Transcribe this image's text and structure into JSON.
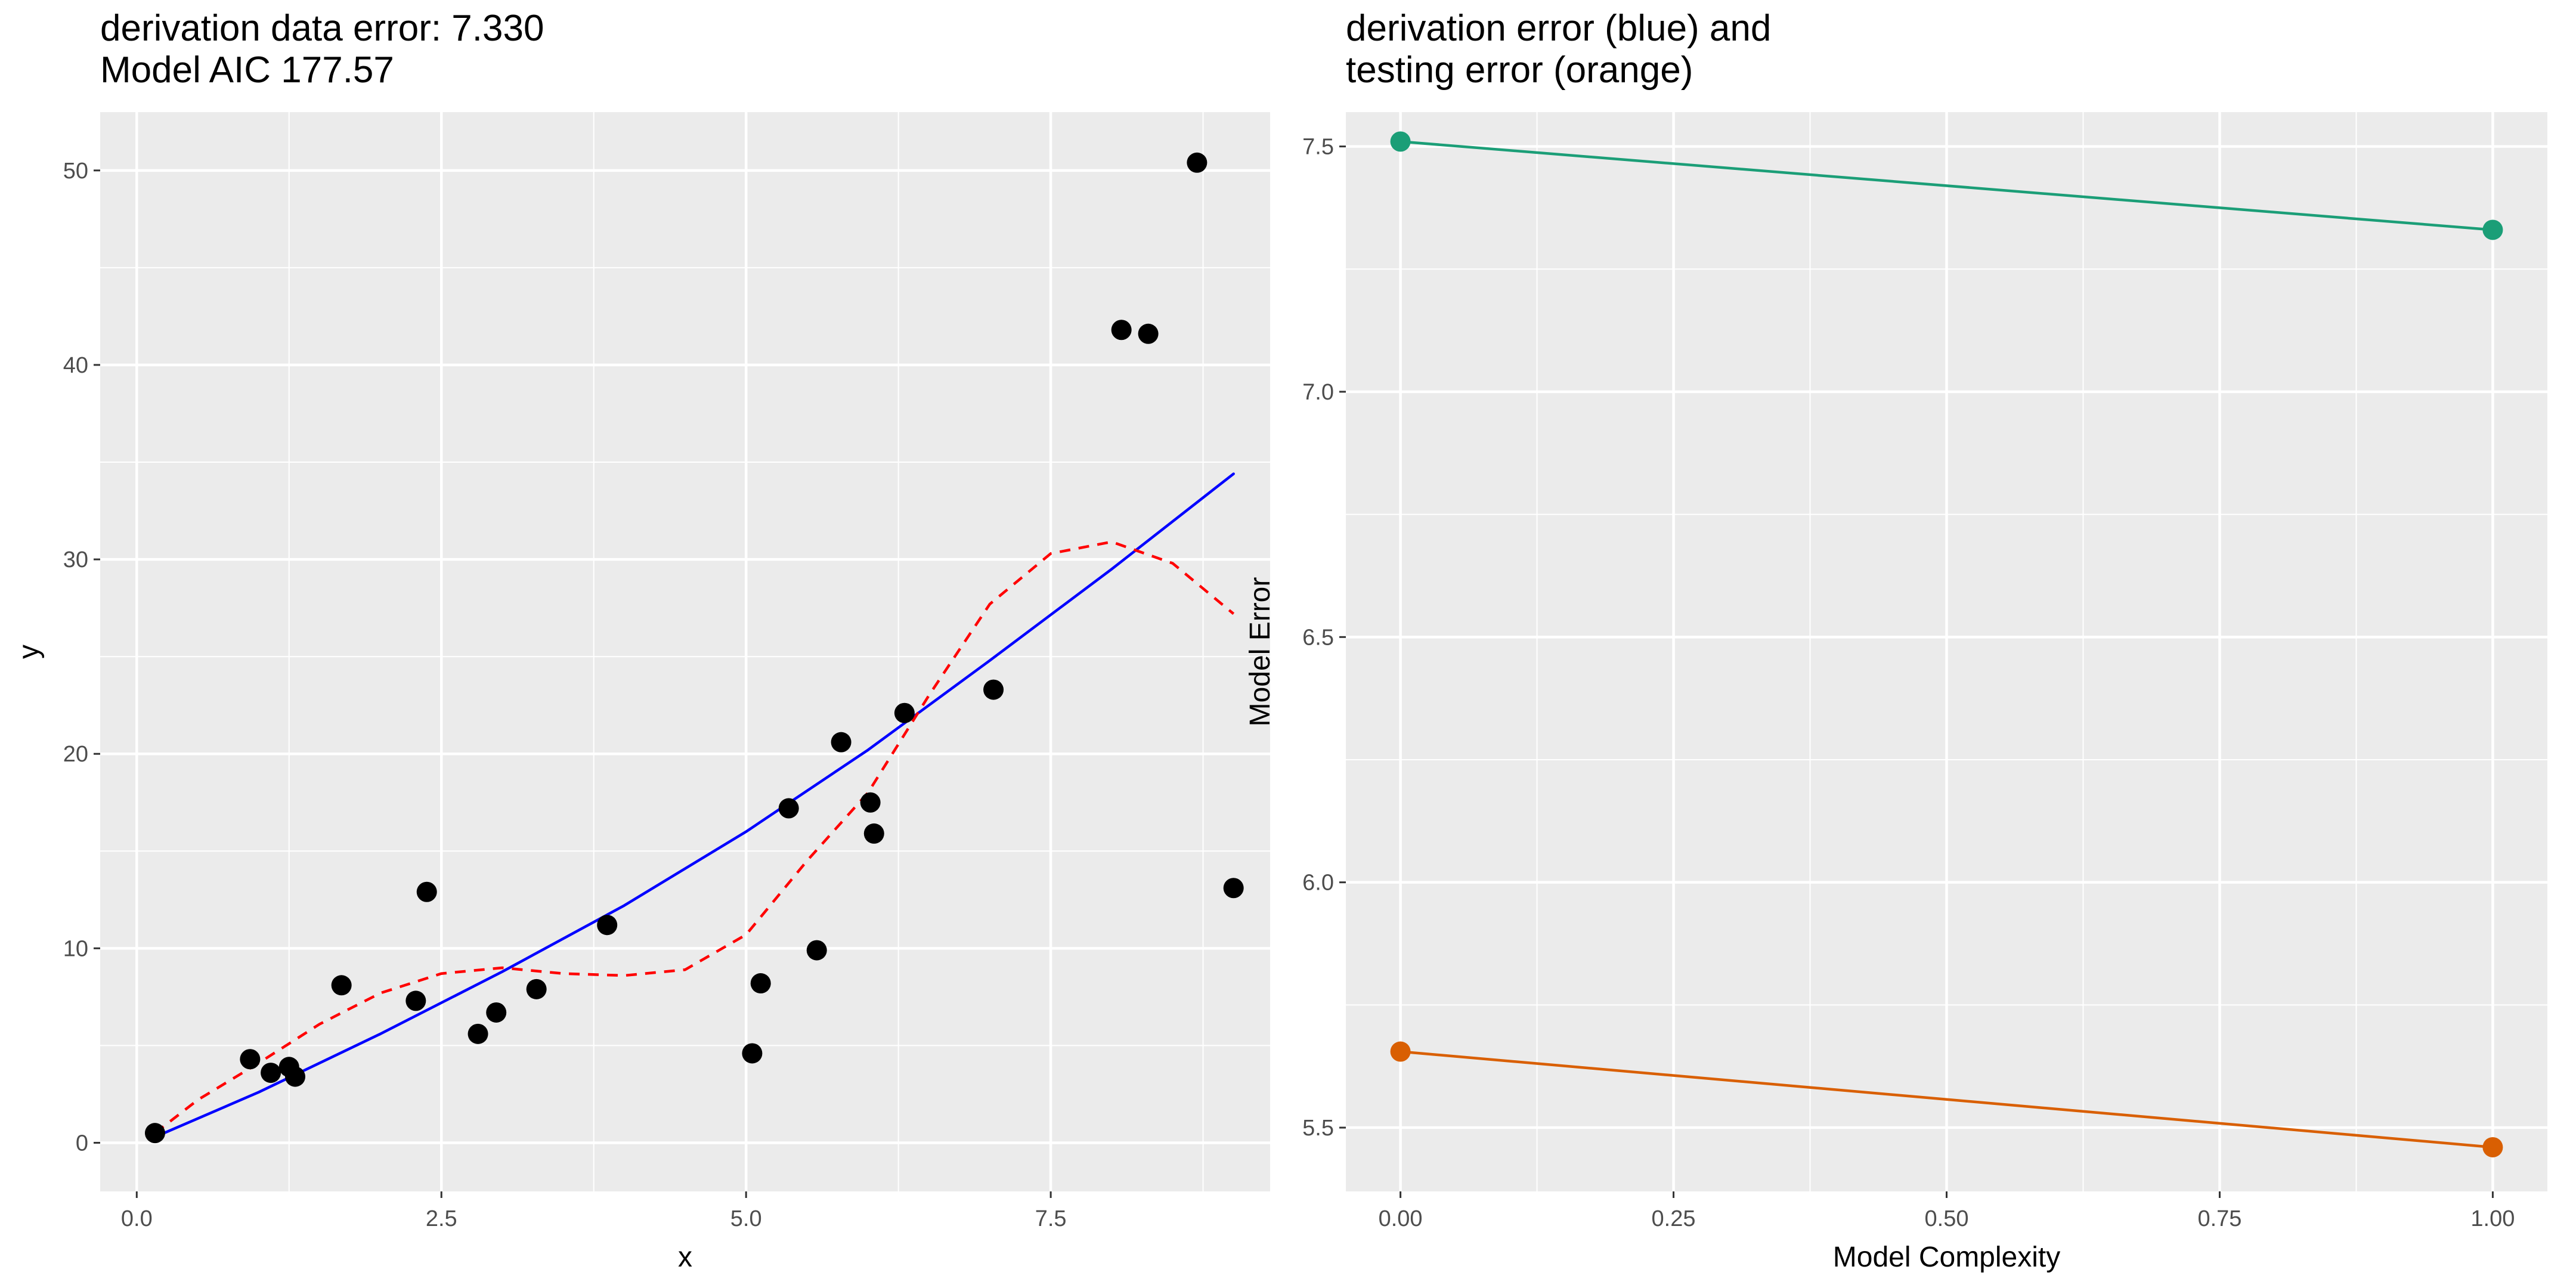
{
  "chart_data": [
    {
      "type": "scatter",
      "title_lines": [
        "derivation data error: 7.330",
        " Model AIC 177.57"
      ],
      "xlabel": "x",
      "ylabel": "y",
      "xlim": [
        -0.3,
        9.3
      ],
      "ylim": [
        -2.5,
        53
      ],
      "x_ticks": [
        0.0,
        2.5,
        5.0,
        7.5
      ],
      "x_tick_labels": [
        "0.0",
        "2.5",
        "5.0",
        "7.5"
      ],
      "y_ticks": [
        0,
        10,
        20,
        30,
        40,
        50
      ],
      "y_tick_labels": [
        "0",
        "10",
        "20",
        "30",
        "40",
        "50"
      ],
      "grid": true,
      "legend": "none",
      "colors": {
        "panel": "#EBEBEB",
        "grid": "#FFFFFF",
        "points": "#000000",
        "fit_line": "#0000FF",
        "smooth_line": "#FF0000"
      },
      "points": [
        {
          "x": 0.15,
          "y": 0.5
        },
        {
          "x": 0.93,
          "y": 4.3
        },
        {
          "x": 1.1,
          "y": 3.6
        },
        {
          "x": 1.25,
          "y": 3.9
        },
        {
          "x": 1.3,
          "y": 3.4
        },
        {
          "x": 1.68,
          "y": 8.1
        },
        {
          "x": 2.29,
          "y": 7.3
        },
        {
          "x": 2.38,
          "y": 12.9
        },
        {
          "x": 2.8,
          "y": 5.6
        },
        {
          "x": 2.95,
          "y": 6.7
        },
        {
          "x": 3.28,
          "y": 7.9
        },
        {
          "x": 3.86,
          "y": 11.2
        },
        {
          "x": 5.05,
          "y": 4.6
        },
        {
          "x": 5.12,
          "y": 8.2
        },
        {
          "x": 5.35,
          "y": 17.2
        },
        {
          "x": 5.58,
          "y": 9.9
        },
        {
          "x": 5.78,
          "y": 20.6
        },
        {
          "x": 6.02,
          "y": 17.5
        },
        {
          "x": 6.05,
          "y": 15.9
        },
        {
          "x": 6.3,
          "y": 22.1
        },
        {
          "x": 7.03,
          "y": 23.3
        },
        {
          "x": 8.08,
          "y": 41.8
        },
        {
          "x": 8.3,
          "y": 41.6
        },
        {
          "x": 8.7,
          "y": 50.4
        },
        {
          "x": 9.0,
          "y": 13.1
        }
      ],
      "series": [
        {
          "style": "solid",
          "color": "#0000FF",
          "x": [
            0.15,
            1.0,
            2.0,
            3.0,
            4.0,
            5.0,
            6.0,
            7.0,
            8.0,
            9.0
          ],
          "y": [
            0.3,
            2.6,
            5.6,
            8.8,
            12.2,
            16.0,
            20.2,
            24.8,
            29.5,
            34.4
          ]
        },
        {
          "style": "dashed",
          "color": "#FF0000",
          "x": [
            0.15,
            0.5,
            1.0,
            1.5,
            2.0,
            2.5,
            3.0,
            3.5,
            4.0,
            4.5,
            5.0,
            5.5,
            6.0,
            6.5,
            7.0,
            7.5,
            8.0,
            8.5,
            9.0
          ],
          "y": [
            0.5,
            2.2,
            4.1,
            6.1,
            7.7,
            8.7,
            9.0,
            8.7,
            8.6,
            8.9,
            10.7,
            14.5,
            18.0,
            23.0,
            27.7,
            30.3,
            30.9,
            29.8,
            27.2
          ]
        }
      ]
    },
    {
      "type": "line",
      "title_lines": [
        "derivation error (blue) and",
        "testing error (orange)"
      ],
      "xlabel": "Model Complexity",
      "ylabel": "Model Error",
      "xlim": [
        -0.05,
        1.05
      ],
      "ylim": [
        5.37,
        7.57
      ],
      "x_ticks": [
        0.0,
        0.25,
        0.5,
        0.75,
        1.0
      ],
      "x_tick_labels": [
        "0.00",
        "0.25",
        "0.50",
        "0.75",
        "1.00"
      ],
      "y_ticks": [
        5.5,
        6.0,
        6.5,
        7.0,
        7.5
      ],
      "y_tick_labels": [
        "5.5",
        "6.0",
        "6.5",
        "7.0",
        "7.5"
      ],
      "grid": true,
      "legend": "none",
      "colors": {
        "panel": "#EBEBEB",
        "grid": "#FFFFFF"
      },
      "series": [
        {
          "color": "#1B9E77",
          "x": [
            0.0,
            1.0
          ],
          "y": [
            7.51,
            7.33
          ]
        },
        {
          "color": "#D95F02",
          "x": [
            0.0,
            1.0
          ],
          "y": [
            5.655,
            5.46
          ]
        }
      ]
    }
  ]
}
